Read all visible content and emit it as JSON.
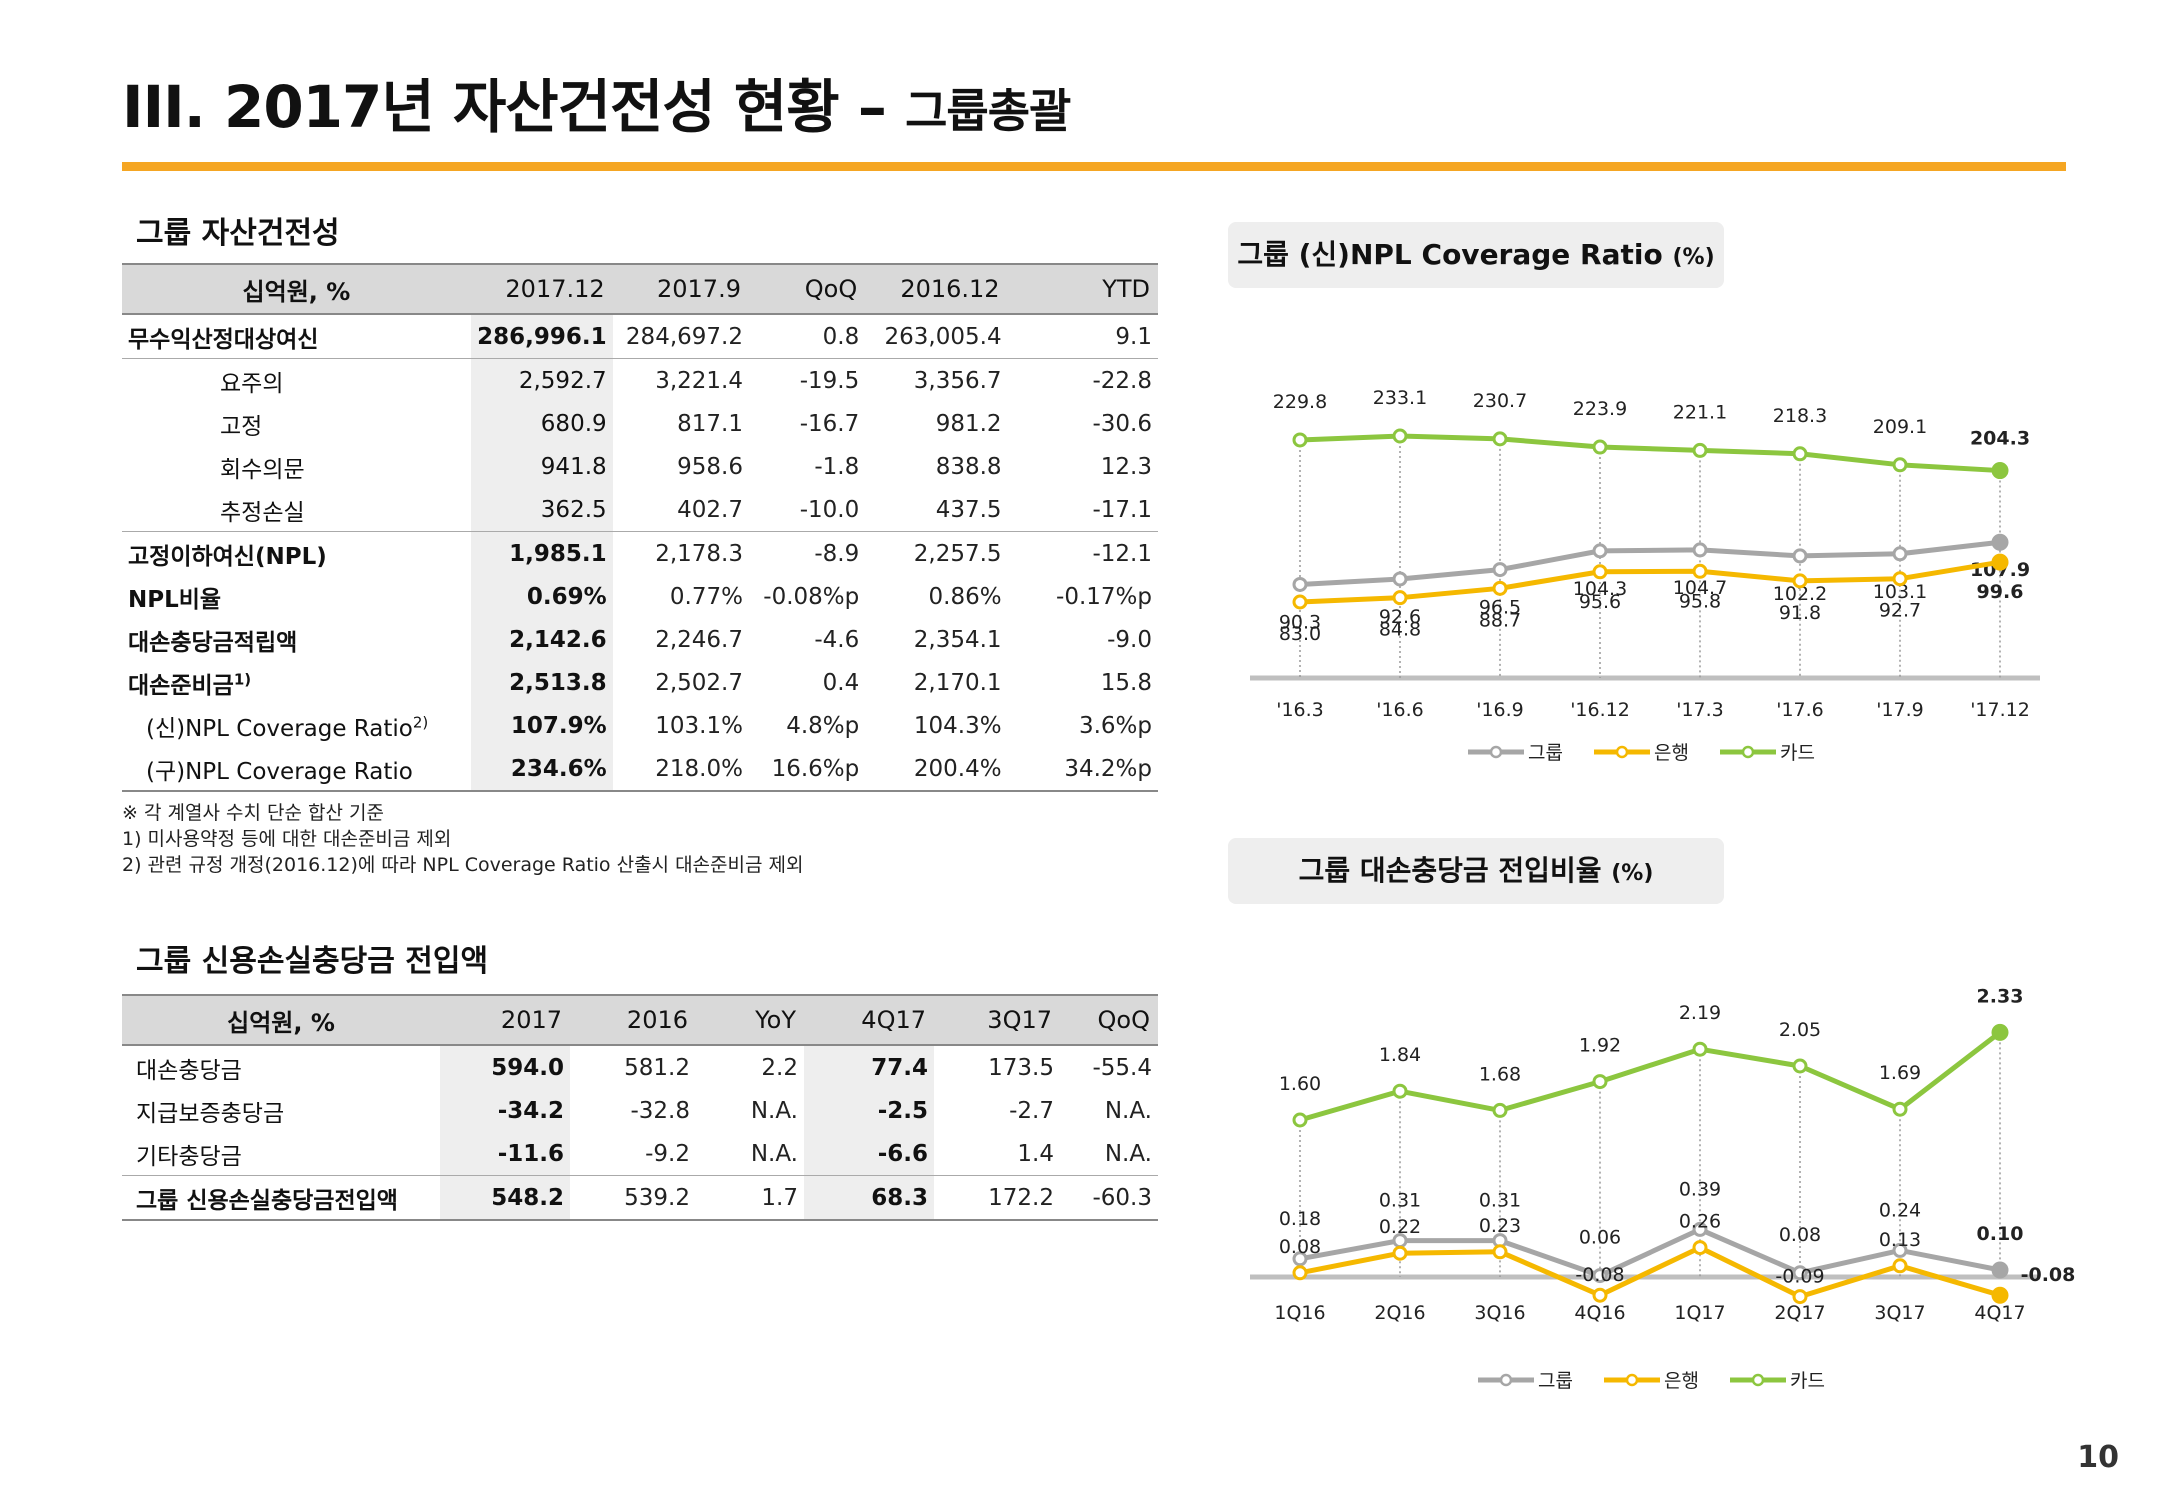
{
  "page": {
    "title_main": "III. 2017년 자산건전성 현황 –",
    "title_sub": "그룹총괄",
    "page_number": "10"
  },
  "asset_quality": {
    "section_title": "그룹 자산건전성",
    "headers": [
      "십억원, %",
      "2017.12",
      "2017.9",
      "QoQ",
      "2016.12",
      "YTD"
    ],
    "rows": [
      {
        "label": "무수익산정대상여신",
        "values": [
          "286,996.1",
          "284,697.2",
          "0.8",
          "263,005.4",
          "9.1"
        ]
      },
      {
        "label": "요주의",
        "values": [
          "2,592.7",
          "3,221.4",
          "-19.5",
          "3,356.7",
          "-22.8"
        ]
      },
      {
        "label": "고정",
        "values": [
          "680.9",
          "817.1",
          "-16.7",
          "981.2",
          "-30.6"
        ]
      },
      {
        "label": "회수의문",
        "values": [
          "941.8",
          "958.6",
          "-1.8",
          "838.8",
          "12.3"
        ]
      },
      {
        "label": "추정손실",
        "values": [
          "362.5",
          "402.7",
          "-10.0",
          "437.5",
          "-17.1"
        ]
      },
      {
        "label": "고정이하여신(NPL)",
        "values": [
          "1,985.1",
          "2,178.3",
          "-8.9",
          "2,257.5",
          "-12.1"
        ]
      },
      {
        "label": "NPL비율",
        "values": [
          "0.69%",
          "0.77%",
          "-0.08%p",
          "0.86%",
          "-0.17%p"
        ]
      },
      {
        "label": "대손충당금적립액",
        "values": [
          "2,142.6",
          "2,246.7",
          "-4.6",
          "2,354.1",
          "-9.0"
        ]
      },
      {
        "label": "대손준비금",
        "sup": "1)",
        "values": [
          "2,513.8",
          "2,502.7",
          "0.4",
          "2,170.1",
          "15.8"
        ]
      },
      {
        "label": "(신)NPL Coverage Ratio",
        "sup": "2)",
        "values": [
          "107.9%",
          "103.1%",
          "4.8%p",
          "104.3%",
          "3.6%p"
        ]
      },
      {
        "label": "(구)NPL Coverage Ratio",
        "values": [
          "234.6%",
          "218.0%",
          "16.6%p",
          "200.4%",
          "34.2%p"
        ]
      }
    ],
    "footnotes": [
      "※ 각 계열사 수치 단순 합산 기준",
      "1) 미사용약정 등에 대한 대손준비금 제외",
      "2) 관련 규정 개정(2016.12)에 따라 NPL Coverage Ratio 산출시 대손준비금 제외"
    ]
  },
  "provision": {
    "section_title": "그룹 신용손실충당금 전입액",
    "headers": [
      "십억원, %",
      "2017",
      "2016",
      "YoY",
      "4Q17",
      "3Q17",
      "QoQ"
    ],
    "rows": [
      {
        "label": "대손충당금",
        "values": [
          "594.0",
          "581.2",
          "2.2",
          "77.4",
          "173.5",
          "-55.4"
        ]
      },
      {
        "label": "지급보증충당금",
        "values": [
          "-34.2",
          "-32.8",
          "N.A.",
          "-2.5",
          "-2.7",
          "N.A."
        ]
      },
      {
        "label": "기타충당금",
        "values": [
          "-11.6",
          "-9.2",
          "N.A.",
          "-6.6",
          "1.4",
          "N.A."
        ]
      },
      {
        "label": "그룹 신용손실충당금전입액",
        "values": [
          "548.2",
          "539.2",
          "1.7",
          "68.3",
          "172.2",
          "-60.3"
        ]
      }
    ]
  },
  "chart1_title": {
    "main": "그룹 (신)NPL Coverage Ratio",
    "unit": "(%)"
  },
  "chart2_title": {
    "main": "그룹 대손충당금 전입비율",
    "unit": "(%)"
  },
  "chart_data": [
    {
      "type": "line",
      "categories": [
        "'16.3",
        "'16.6",
        "'16.9",
        "'16.12",
        "'17.3",
        "'17.6",
        "'17.9",
        "'17.12"
      ],
      "series": [
        {
          "name": "그룹",
          "color": "#a6a6a6",
          "values": [
            90.3,
            92.6,
            96.5,
            104.3,
            104.7,
            102.2,
            103.1,
            107.9
          ]
        },
        {
          "name": "은행",
          "color": "#f5b800",
          "values": [
            83.0,
            84.8,
            88.7,
            95.6,
            95.8,
            91.8,
            92.7,
            99.6
          ]
        },
        {
          "name": "카드",
          "color": "#8cc63f",
          "values": [
            229.8,
            233.1,
            230.7,
            223.9,
            221.1,
            218.3,
            209.1,
            204.3
          ]
        }
      ]
    },
    {
      "type": "line",
      "categories": [
        "1Q16",
        "2Q16",
        "3Q16",
        "4Q16",
        "1Q17",
        "2Q17",
        "3Q17",
        "4Q17"
      ],
      "series": [
        {
          "name": "그룹",
          "color": "#a6a6a6",
          "values": [
            0.18,
            0.31,
            0.31,
            0.06,
            0.39,
            0.08,
            0.24,
            0.1
          ]
        },
        {
          "name": "은행",
          "color": "#f5b800",
          "values": [
            0.08,
            0.22,
            0.23,
            -0.08,
            0.26,
            -0.09,
            0.13,
            -0.08
          ]
        },
        {
          "name": "카드",
          "color": "#8cc63f",
          "values": [
            1.6,
            1.84,
            1.68,
            1.92,
            2.19,
            2.05,
            1.69,
            2.33
          ]
        }
      ]
    }
  ]
}
